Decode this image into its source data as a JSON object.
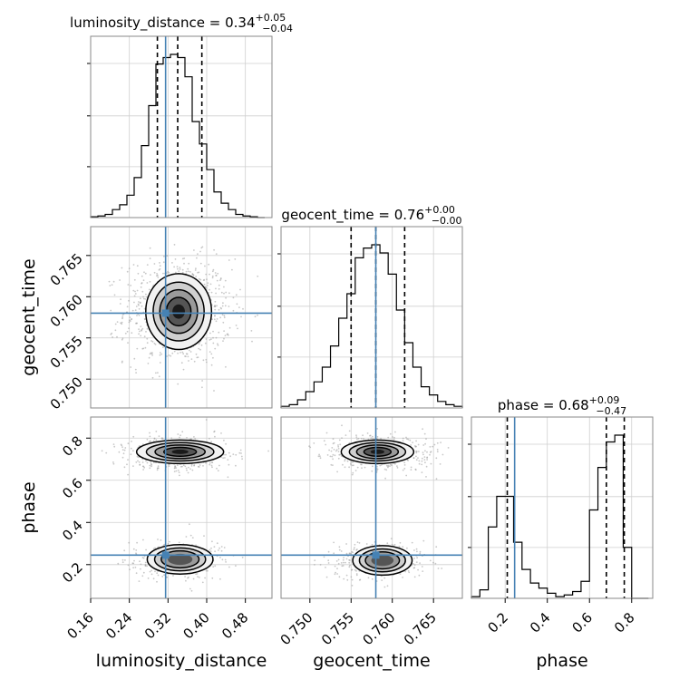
{
  "chart_data": {
    "type": "corner",
    "parameters": [
      "luminosity_distance",
      "geocent_time",
      "phase"
    ],
    "titles": [
      {
        "name": "luminosity_distance",
        "median": "0.34",
        "plus": "+0.05",
        "minus": "−0.04"
      },
      {
        "name": "geocent_time",
        "median": "0.76",
        "plus": "+0.00",
        "minus": "−0.00"
      },
      {
        "name": "phase",
        "median": "0.68",
        "plus": "+0.09",
        "minus": "−0.47"
      }
    ],
    "axis_ranges": {
      "luminosity_distance": [
        0.16,
        0.535
      ],
      "geocent_time": [
        0.7465,
        0.7685
      ],
      "phase": [
        0.04,
        0.9
      ]
    },
    "ticks": {
      "luminosity_distance": [
        {
          "v": 0.16,
          "label": "0.16"
        },
        {
          "v": 0.24,
          "label": "0.24"
        },
        {
          "v": 0.32,
          "label": "0.32"
        },
        {
          "v": 0.4,
          "label": "0.40"
        },
        {
          "v": 0.48,
          "label": "0.48"
        }
      ],
      "geocent_time": [
        {
          "v": 0.75,
          "label": "0.750"
        },
        {
          "v": 0.755,
          "label": "0.755"
        },
        {
          "v": 0.76,
          "label": "0.760"
        },
        {
          "v": 0.765,
          "label": "0.765"
        }
      ],
      "phase": [
        {
          "v": 0.2,
          "label": "0.2"
        },
        {
          "v": 0.4,
          "label": "0.4"
        },
        {
          "v": 0.6,
          "label": "0.6"
        },
        {
          "v": 0.8,
          "label": "0.8"
        }
      ]
    },
    "injection": {
      "luminosity_distance": 0.315,
      "geocent_time": 0.758,
      "phase": 0.245
    },
    "quantiles": {
      "luminosity_distance": [
        0.298,
        0.34,
        0.39
      ],
      "geocent_time": [
        0.755,
        0.758,
        0.7615
      ],
      "phase": [
        0.21,
        0.68,
        0.765
      ]
    },
    "histograms": {
      "luminosity_distance": {
        "edges": [
          0.16,
          0.175,
          0.19,
          0.205,
          0.22,
          0.235,
          0.25,
          0.265,
          0.28,
          0.295,
          0.31,
          0.325,
          0.34,
          0.355,
          0.37,
          0.385,
          0.4,
          0.415,
          0.43,
          0.445,
          0.46,
          0.475,
          0.49,
          0.505,
          0.52
        ],
        "counts": [
          0.005,
          0.01,
          0.02,
          0.05,
          0.08,
          0.14,
          0.25,
          0.45,
          0.7,
          0.96,
          1.0,
          1.02,
          1.0,
          0.88,
          0.6,
          0.46,
          0.3,
          0.16,
          0.09,
          0.05,
          0.02,
          0.01,
          0.005,
          0.0
        ]
      },
      "geocent_time": {
        "edges": [
          0.7465,
          0.7475,
          0.7485,
          0.7495,
          0.7505,
          0.7515,
          0.7525,
          0.7535,
          0.7545,
          0.7555,
          0.7565,
          0.7575,
          0.7585,
          0.7595,
          0.7605,
          0.7615,
          0.7625,
          0.7635,
          0.7645,
          0.7655,
          0.7665,
          0.7675,
          0.7685
        ],
        "counts": [
          0.01,
          0.02,
          0.05,
          0.1,
          0.16,
          0.25,
          0.38,
          0.55,
          0.7,
          0.92,
          0.98,
          1.0,
          0.95,
          0.82,
          0.6,
          0.4,
          0.25,
          0.13,
          0.08,
          0.04,
          0.02,
          0.01
        ]
      },
      "phase": {
        "edges": [
          0.04,
          0.08,
          0.12,
          0.16,
          0.2,
          0.24,
          0.28,
          0.32,
          0.36,
          0.4,
          0.44,
          0.48,
          0.52,
          0.56,
          0.6,
          0.64,
          0.68,
          0.72,
          0.76,
          0.8,
          0.84,
          0.88
        ],
        "counts": [
          0.01,
          0.05,
          0.42,
          0.6,
          0.6,
          0.33,
          0.17,
          0.09,
          0.06,
          0.03,
          0.01,
          0.02,
          0.04,
          0.1,
          0.52,
          0.77,
          0.92,
          0.96,
          0.3,
          0.0,
          0.0
        ]
      }
    },
    "axis_labels": [
      "luminosity_distance",
      "geocent_time",
      "phase"
    ],
    "grid": true
  }
}
